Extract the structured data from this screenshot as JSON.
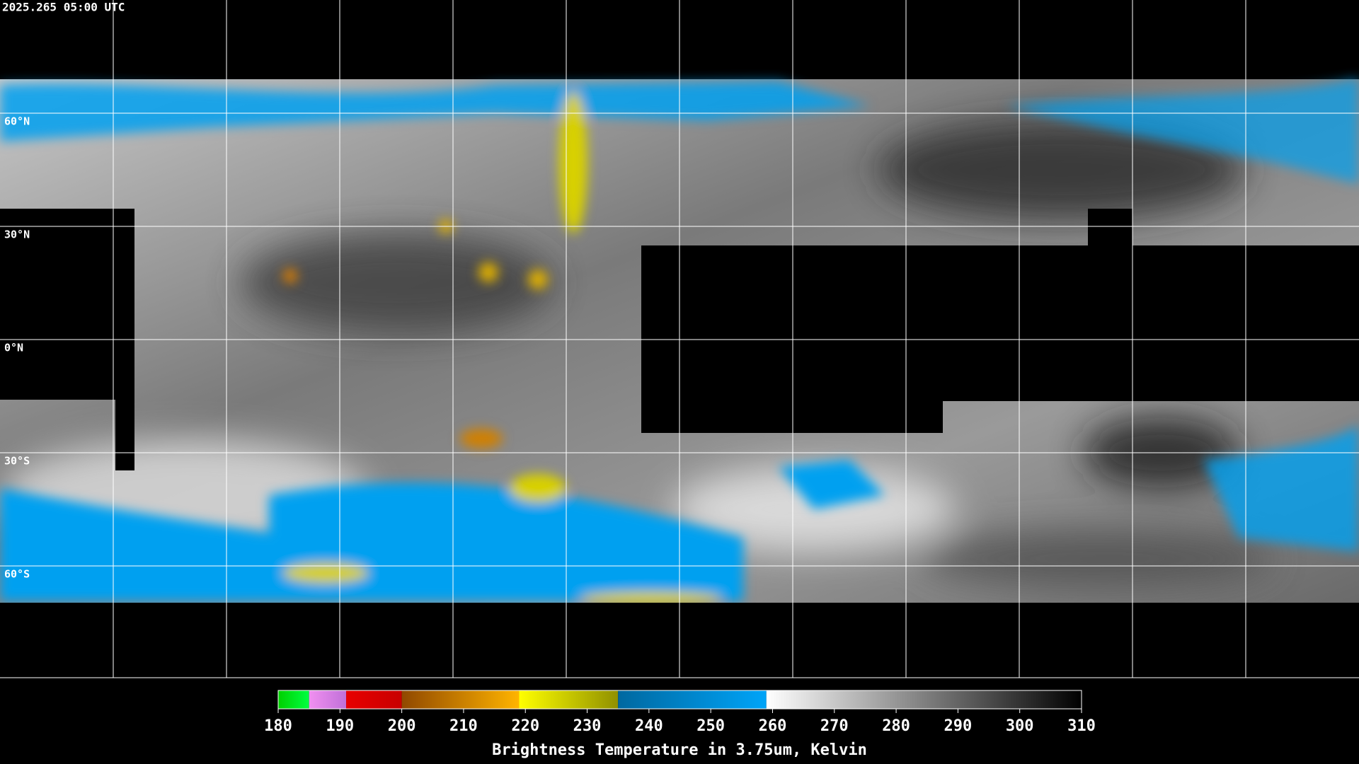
{
  "timestamp": "2025.265 05:00 UTC",
  "map": {
    "lat_range": [
      90,
      -90
    ],
    "parallels": [
      {
        "value": 60,
        "label": "60°N"
      },
      {
        "value": 30,
        "label": "30°N"
      },
      {
        "value": 0,
        "label": "0°N"
      },
      {
        "value": -30,
        "label": "30°S"
      },
      {
        "value": -60,
        "label": "60°S"
      }
    ]
  },
  "colorbar": {
    "range": [
      180,
      310
    ],
    "ticks": [
      180,
      190,
      200,
      210,
      220,
      230,
      240,
      250,
      260,
      270,
      280,
      290,
      300,
      310
    ],
    "segments": [
      {
        "from": 180,
        "to": 185,
        "colors": [
          "#00d000",
          "#00ff40"
        ]
      },
      {
        "from": 185,
        "to": 191,
        "colors": [
          "#f090f0",
          "#c070d8"
        ]
      },
      {
        "from": 191,
        "to": 200,
        "colors": [
          "#e80000",
          "#c80000"
        ]
      },
      {
        "from": 200,
        "to": 219,
        "colors": [
          "#904800",
          "#ffb400"
        ]
      },
      {
        "from": 219,
        "to": 235,
        "colors": [
          "#ffff00",
          "#909000"
        ]
      },
      {
        "from": 235,
        "to": 259,
        "colors": [
          "#0068a0",
          "#00a4f8"
        ]
      },
      {
        "from": 259,
        "to": 310,
        "colors": [
          "#ffffff",
          "#000000"
        ]
      }
    ],
    "label": "Brightness Temperature in 3.75um, Kelvin"
  }
}
